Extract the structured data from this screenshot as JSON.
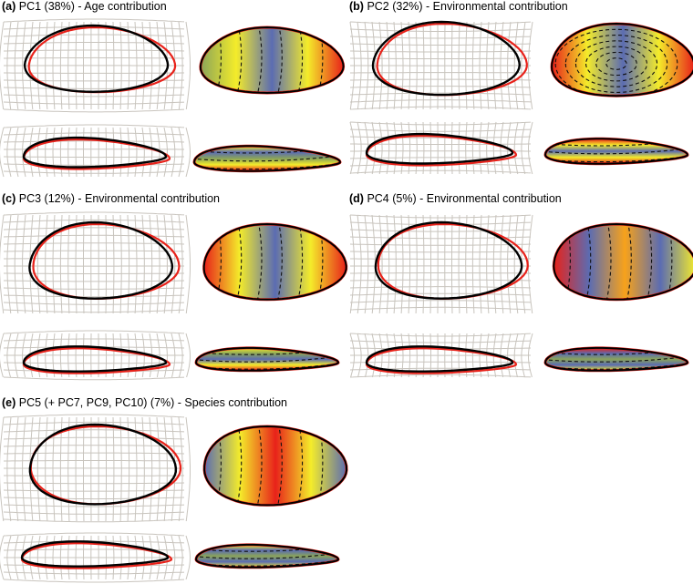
{
  "figure": {
    "panels": [
      {
        "id": "a",
        "tag": "(a)",
        "title": " PC1 (38%) - Age contribution"
      },
      {
        "id": "b",
        "tag": "(b)",
        "title": " PC2 (32%) - Environmental contribution"
      },
      {
        "id": "c",
        "tag": "(c)",
        "title": " PC3 (12%) - Environmental contribution"
      },
      {
        "id": "d",
        "tag": "(d)",
        "title": " PC4 (5%) - Environmental contribution"
      },
      {
        "id": "e",
        "tag": "(e)",
        "title": " PC5 (+ PC7, PC9, PC10) (7%) - Species contribution"
      }
    ]
  },
  "colors": {
    "grid_line": "#c8c4bd",
    "outline_mean": "#000000",
    "outline_deformed": "#e8221a",
    "heat_low": "#5b6cb2",
    "heat_mid_low": "#8aa45a",
    "heat_mid": "#f4ec2a",
    "heat_mid_high": "#f7a21b",
    "heat_high": "#e8221a"
  }
}
